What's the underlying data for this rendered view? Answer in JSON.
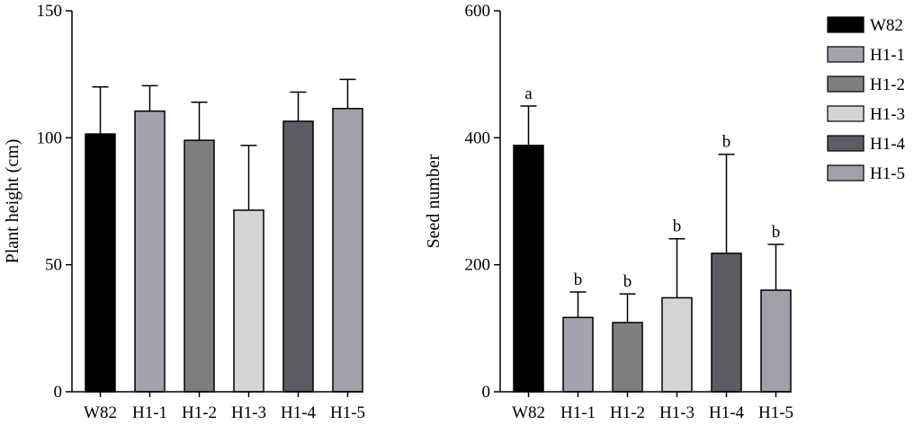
{
  "chart_data": [
    {
      "type": "bar",
      "title": "",
      "xlabel": "",
      "ylabel": "Plant height (cm)",
      "ylim": [
        0,
        150
      ],
      "yticks": [
        0,
        50,
        100,
        150
      ],
      "categories": [
        "W82",
        "H1-1",
        "H1-2",
        "H1-3",
        "H1-4",
        "H1-5"
      ],
      "values": [
        101.5,
        110.5,
        99,
        71.5,
        106.5,
        111.5
      ],
      "errors": [
        18.5,
        10,
        15,
        25.5,
        11.5,
        11.5
      ],
      "bar_labels": [
        "",
        "",
        "",
        "",
        "",
        ""
      ],
      "colors": [
        "#000000",
        "#a3a3ad",
        "#7e7e7e",
        "#d5d5d5",
        "#5c5b61",
        "#a0a0a8"
      ]
    },
    {
      "type": "bar",
      "title": "",
      "xlabel": "",
      "ylabel": "Seed number",
      "ylim": [
        0,
        600
      ],
      "yticks": [
        0,
        200,
        400,
        600
      ],
      "categories": [
        "W82",
        "H1-1",
        "H1-2",
        "H1-3",
        "H1-4",
        "H1-5"
      ],
      "values": [
        388,
        117,
        109,
        148,
        218,
        160
      ],
      "errors": [
        62,
        40,
        45,
        93,
        156,
        72
      ],
      "bar_labels": [
        "a",
        "b",
        "b",
        "b",
        "b",
        "b"
      ],
      "colors": [
        "#000000",
        "#a3a3ad",
        "#7e7e7e",
        "#d5d5d5",
        "#5c5b61",
        "#a0a0a8"
      ]
    }
  ],
  "legend": {
    "placement": "right",
    "entries": [
      {
        "label": "W82",
        "color": "#000000"
      },
      {
        "label": "H1-1",
        "color": "#a3a3ad"
      },
      {
        "label": "H1-2",
        "color": "#7e7e7e"
      },
      {
        "label": "H1-3",
        "color": "#d5d5d5"
      },
      {
        "label": "H1-4",
        "color": "#5c5b61"
      },
      {
        "label": "H1-5",
        "color": "#a0a0a8"
      }
    ]
  }
}
